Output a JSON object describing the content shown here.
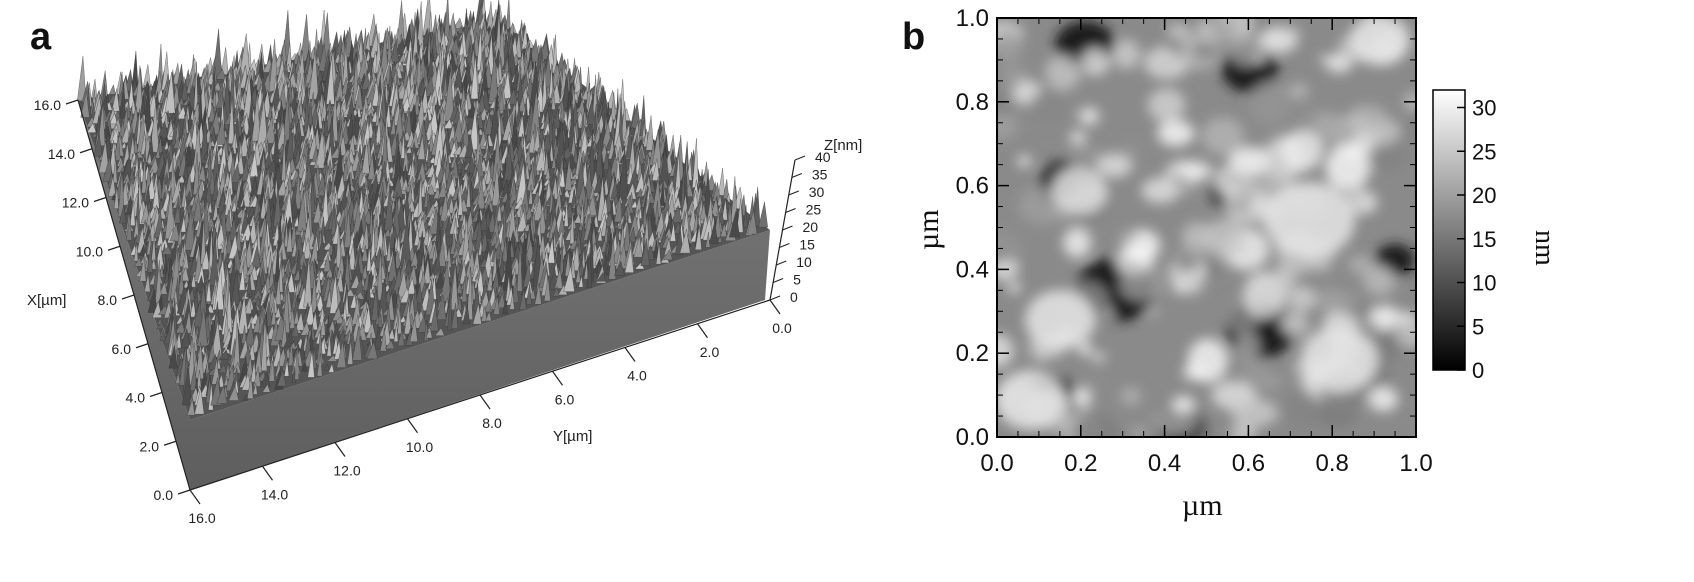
{
  "panel_a": {
    "label": "a",
    "x_axis_title": "X[µm]",
    "y_axis_title": "Y[µm]",
    "z_axis_title": "Z[nm]",
    "x_ticks": [
      "0.0",
      "2.0",
      "4.0",
      "6.0",
      "8.0",
      "10.0",
      "12.0",
      "14.0",
      "16.0"
    ],
    "y_ticks": [
      "0.0",
      "2.0",
      "4.0",
      "6.0",
      "8.0",
      "10.0",
      "12.0",
      "14.0",
      "16.0"
    ],
    "z_ticks": [
      "0",
      "5",
      "10",
      "15",
      "20",
      "25",
      "30",
      "35",
      "40"
    ]
  },
  "panel_b": {
    "label": "b",
    "x_axis_title": "µm",
    "y_axis_title": "µm",
    "x_ticks": [
      "0.0",
      "0.2",
      "0.4",
      "0.6",
      "0.8",
      "1.0"
    ],
    "y_ticks": [
      "0.0",
      "0.2",
      "0.4",
      "0.6",
      "0.8",
      "1.0"
    ],
    "colorbar_title": "nm",
    "colorbar_ticks": [
      "0",
      "5",
      "10",
      "15",
      "20",
      "25",
      "30"
    ]
  },
  "colors": {
    "surface_dark": "#3a3a3a",
    "surface_light": "#bdbdbd",
    "wall": "#6e6e6e"
  }
}
